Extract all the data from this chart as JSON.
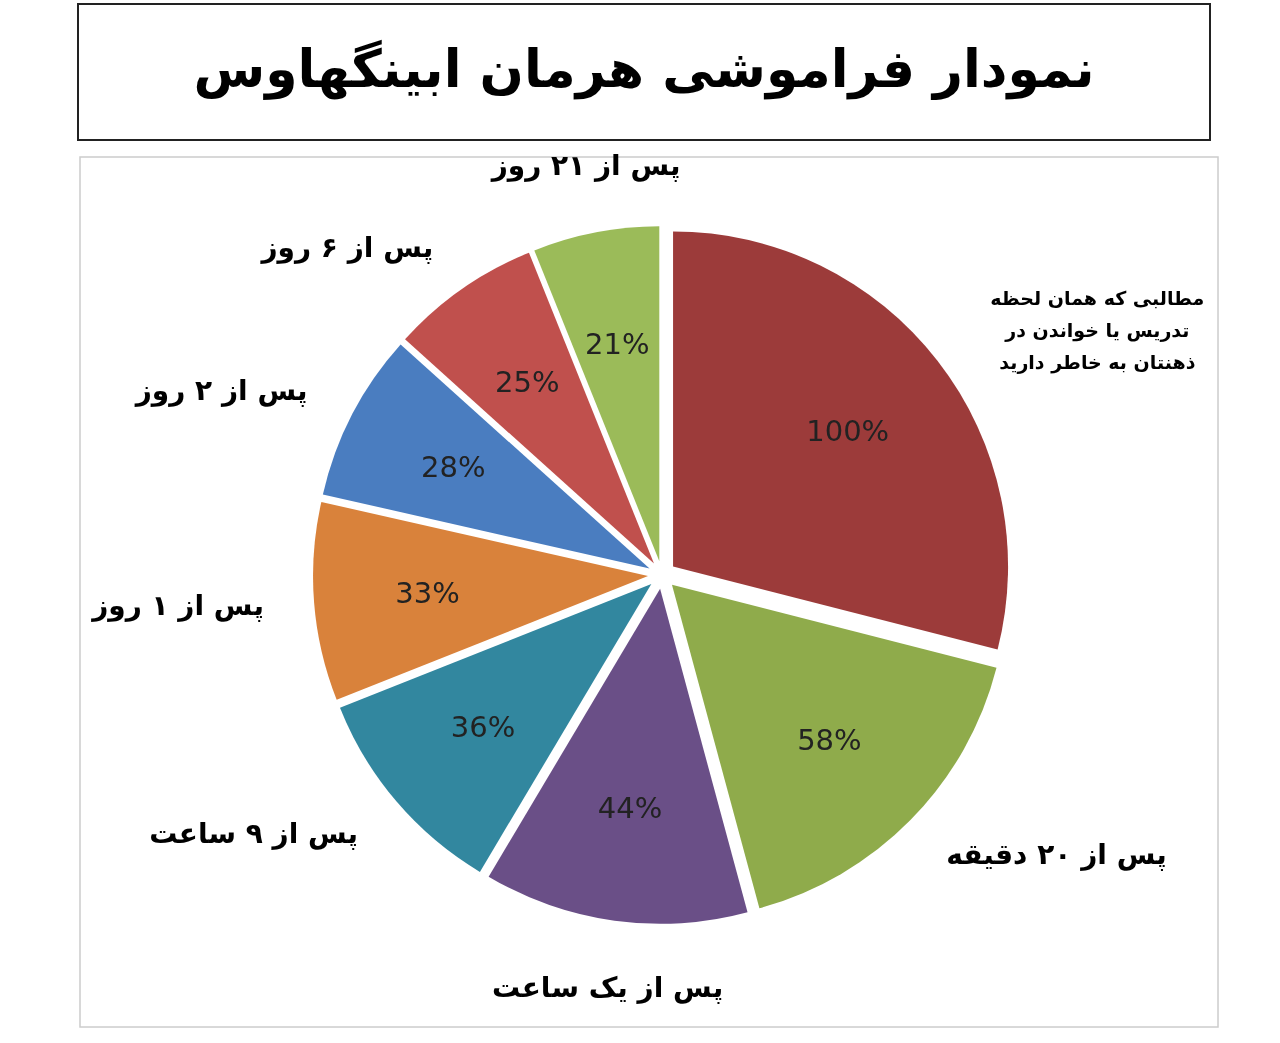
{
  "chart_data": {
    "type": "pie",
    "title": "نمودار فراموشی هرمان ابینگهاوس",
    "categories": [
      "مطالبی که همان لحظه تدریس یا خواندن در ذهنتان به خاطر دارید",
      "پس از ۲۰ دقیقه",
      "پس از یک ساعت",
      "پس از ۹ ساعت",
      "پس از ۱ روز",
      "پس از ۲ روز",
      "پس از ۶ روز",
      "پس از ۲۱ روز"
    ],
    "values": [
      100,
      58,
      44,
      36,
      33,
      28,
      25,
      21
    ],
    "value_labels": [
      "100%",
      "58%",
      "44%",
      "36%",
      "33%",
      "28%",
      "25%",
      "21%"
    ],
    "colors": [
      "#9c3b3a",
      "#8fab4b",
      "#6a4f87",
      "#32879f",
      "#d9823b",
      "#4a7dc0",
      "#c0504d",
      "#9bbb59"
    ]
  }
}
